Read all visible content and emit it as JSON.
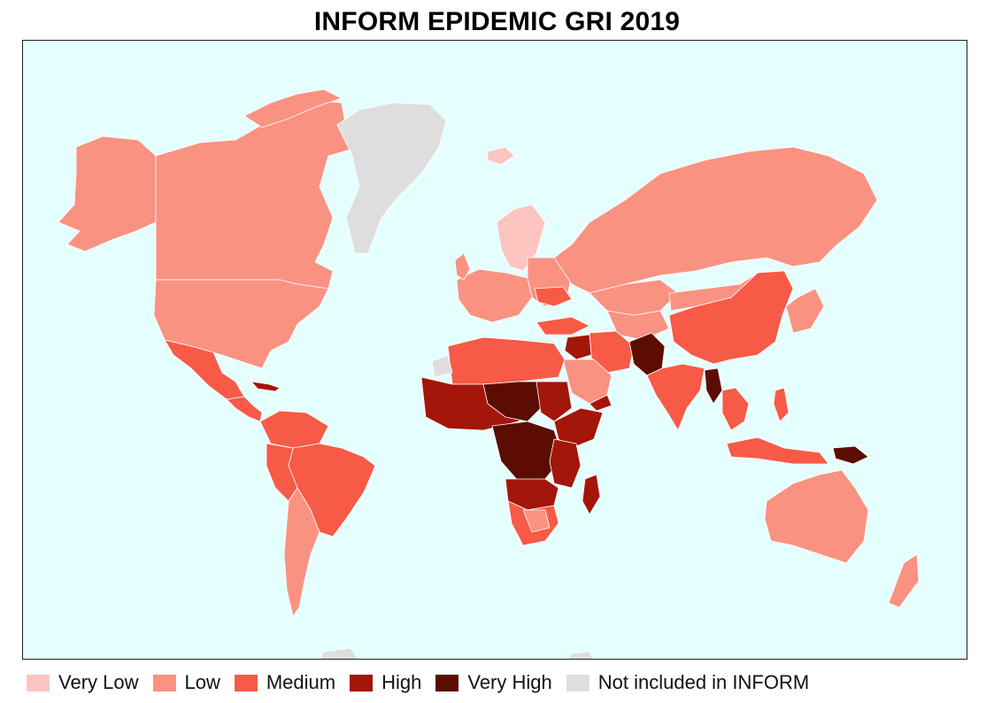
{
  "title": "INFORM EPIDEMIC GRI 2019",
  "colors": {
    "ocean": "#e5ffff",
    "very_low": "#fcc5c0",
    "low": "#fa9282",
    "medium": "#f75a46",
    "high": "#a31609",
    "very_high": "#5c0d03",
    "not_included": "#dedede"
  },
  "legend": [
    {
      "label": "Very Low",
      "color": "#fcc5c0"
    },
    {
      "label": "Low",
      "color": "#fa9282"
    },
    {
      "label": "Medium",
      "color": "#f75a46"
    },
    {
      "label": "High",
      "color": "#a31609"
    },
    {
      "label": "Very High",
      "color": "#5c0d03"
    },
    {
      "label": "Not included in INFORM",
      "color": "#dedede"
    }
  ]
}
